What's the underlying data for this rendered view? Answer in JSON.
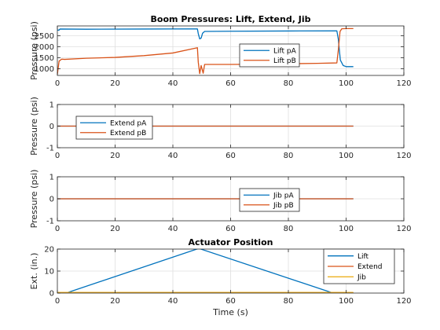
{
  "figure": {
    "background": "#ffffff",
    "axis_color": "#262626",
    "grid_color": "#dfdfdf"
  },
  "chart_data": [
    {
      "type": "line",
      "title": "Boom Pressures: Lift, Extend, Jib",
      "xlabel": "",
      "ylabel": "Pressure (psi)",
      "xlim": [
        0,
        120
      ],
      "ylim": [
        700,
        2950
      ],
      "xticks": [
        0,
        20,
        40,
        60,
        80,
        100,
        120
      ],
      "yticks": [
        1000,
        1500,
        2000,
        2500
      ],
      "grid": true,
      "legend": "upper-center",
      "series": [
        {
          "name": "Lift pA",
          "color": "#0072BD",
          "x": [
            0,
            0.6,
            0.9,
            10,
            30,
            48.5,
            48.8,
            49.3,
            49.8,
            50.3,
            51,
            60,
            80,
            96.8,
            97.3,
            98,
            99,
            100,
            102.5
          ],
          "y": [
            2760,
            2760,
            2810,
            2800,
            2810,
            2815,
            2600,
            2360,
            2400,
            2620,
            2700,
            2710,
            2720,
            2725,
            2350,
            1400,
            1150,
            1100,
            1100
          ]
        },
        {
          "name": "Lift pB",
          "color": "#D95319",
          "x": [
            0,
            0.6,
            1.5,
            2.5,
            10,
            20,
            30,
            40,
            48.5,
            48.8,
            49.3,
            49.8,
            50.5,
            51,
            60,
            70,
            80,
            90,
            96.8,
            97.3,
            97.9,
            98.5,
            100,
            102.5
          ],
          "y": [
            750,
            1350,
            1440,
            1430,
            1480,
            1520,
            1600,
            1720,
            1960,
            1300,
            780,
            1150,
            800,
            1200,
            1200,
            1210,
            1230,
            1250,
            1270,
            1850,
            2700,
            2820,
            2830,
            2830
          ]
        }
      ]
    },
    {
      "type": "line",
      "title": "",
      "xlabel": "",
      "ylabel": "Pressure (psi)",
      "xlim": [
        0,
        120
      ],
      "ylim": [
        -1,
        1
      ],
      "xticks": [
        0,
        20,
        40,
        60,
        80,
        100,
        120
      ],
      "yticks": [
        -1,
        0,
        1
      ],
      "grid": true,
      "legend": "upper-left",
      "series": [
        {
          "name": "Extend pA",
          "color": "#0072BD",
          "x": [
            0,
            102.5
          ],
          "y": [
            0,
            0
          ]
        },
        {
          "name": "Extend pB",
          "color": "#D95319",
          "x": [
            0,
            102.5
          ],
          "y": [
            0,
            0
          ]
        }
      ]
    },
    {
      "type": "line",
      "title": "",
      "xlabel": "",
      "ylabel": "Pressure (psi)",
      "xlim": [
        0,
        120
      ],
      "ylim": [
        -1,
        1
      ],
      "xticks": [
        0,
        20,
        40,
        60,
        80,
        100,
        120
      ],
      "yticks": [
        -1,
        0,
        1
      ],
      "grid": true,
      "legend": "upper-center",
      "series": [
        {
          "name": "Jib pA",
          "color": "#0072BD",
          "x": [
            0,
            102.5
          ],
          "y": [
            0,
            0
          ]
        },
        {
          "name": "Jib pB",
          "color": "#D95319",
          "x": [
            0,
            102.5
          ],
          "y": [
            0,
            0
          ]
        }
      ]
    },
    {
      "type": "line",
      "title": "Actuator Position",
      "xlabel": "Time (s)",
      "ylabel": "Ext. (in.)",
      "xlim": [
        0,
        120
      ],
      "ylim": [
        0,
        20
      ],
      "xticks": [
        0,
        20,
        40,
        60,
        80,
        100,
        120
      ],
      "yticks": [
        0,
        10,
        20
      ],
      "grid": true,
      "legend": "upper-right",
      "series": [
        {
          "name": "Lift",
          "color": "#0072BD",
          "x": [
            0,
            3,
            49,
            95.5,
            102.5
          ],
          "y": [
            0,
            0,
            20.3,
            0,
            0
          ]
        },
        {
          "name": "Extend",
          "color": "#D95319",
          "x": [
            0,
            102.5
          ],
          "y": [
            0.1,
            0.1
          ]
        },
        {
          "name": "Jib",
          "color": "#EDB120",
          "x": [
            0,
            102.5
          ],
          "y": [
            0.3,
            0.3
          ]
        }
      ]
    }
  ]
}
